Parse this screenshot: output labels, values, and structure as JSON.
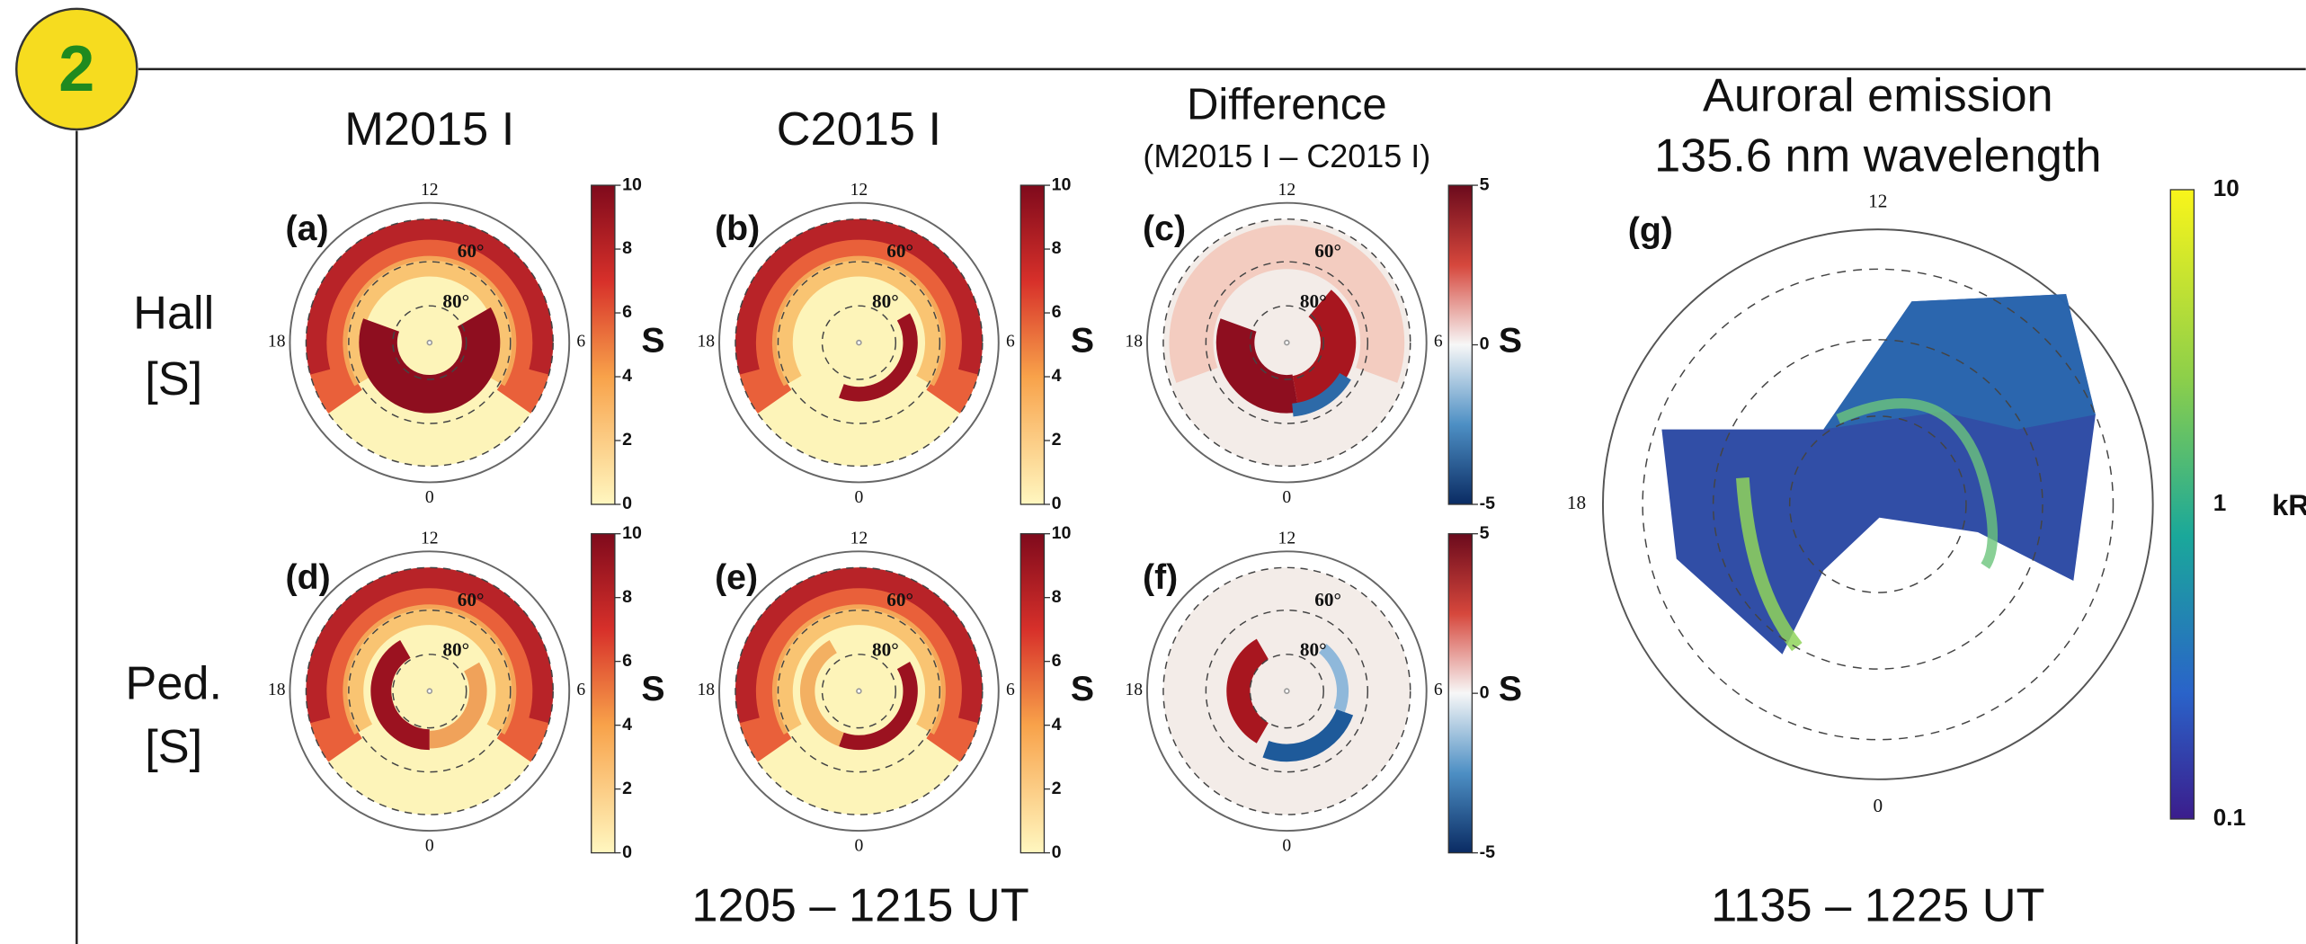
{
  "badge": "2",
  "columns": [
    {
      "title": "M2015 I"
    },
    {
      "title": "C2015 I"
    },
    {
      "title": "Difference",
      "subtitle": "(M2015 I – C2015 I)"
    }
  ],
  "rows": [
    {
      "label": [
        "Hall",
        "[S]"
      ]
    },
    {
      "label": [
        "Ped.",
        "[S]"
      ]
    }
  ],
  "dial": {
    "top": "12",
    "right": "6",
    "left": "18",
    "bottom": "0",
    "lat_outer": "60°",
    "lat_inner": "80°"
  },
  "panels": [
    {
      "tag": "(a)",
      "colorbar_ticks": [
        10,
        8,
        6,
        4,
        2,
        0
      ],
      "unit": "S"
    },
    {
      "tag": "(b)",
      "colorbar_ticks": [
        10,
        8,
        6,
        4,
        2,
        0
      ],
      "unit": "S"
    },
    {
      "tag": "(c)",
      "colorbar_ticks": [
        5,
        0,
        -5
      ],
      "unit": "S"
    },
    {
      "tag": "(d)",
      "colorbar_ticks": [
        10,
        8,
        6,
        4,
        2,
        0
      ],
      "unit": "S"
    },
    {
      "tag": "(e)",
      "colorbar_ticks": [
        10,
        8,
        6,
        4,
        2,
        0
      ],
      "unit": "S"
    },
    {
      "tag": "(f)",
      "colorbar_ticks": [
        5,
        0,
        -5
      ],
      "unit": "S"
    }
  ],
  "aurora": {
    "title": [
      "Auroral emission",
      "135.6 nm wavelength"
    ],
    "tag": "(g)",
    "colorbar_ticks": [
      10,
      1,
      0.1
    ],
    "unit": "kR"
  },
  "time_left": "1205 – 1215 UT",
  "time_right": "1135 – 1225 UT"
}
